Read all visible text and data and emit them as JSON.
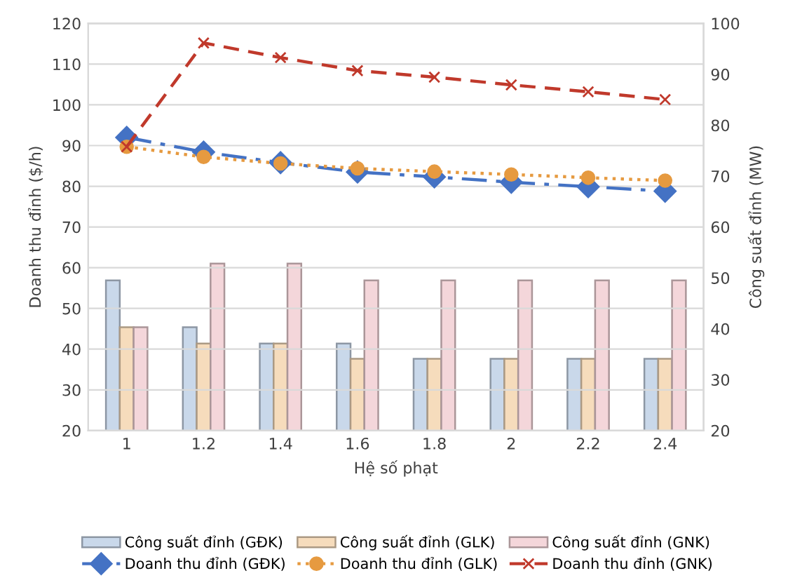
{
  "chart_data": {
    "type": "bar",
    "xlabel": "Hệ số phạt",
    "ylabel": "Doanh thu đỉnh ($/h)",
    "y2label": "Công suất đỉnh (MW)",
    "categories": [
      "1",
      "1.2",
      "1.4",
      "1.6",
      "1.8",
      "2",
      "2.2",
      "2.4"
    ],
    "ylim": [
      20,
      120
    ],
    "yticks": [
      20,
      30,
      40,
      50,
      60,
      70,
      80,
      90,
      100,
      110,
      120
    ],
    "y2lim": [
      20,
      100
    ],
    "y2ticks": [
      20,
      30,
      40,
      50,
      60,
      70,
      80,
      90,
      100
    ],
    "grid": true,
    "legend": "bottom",
    "series": [
      {
        "name": "Công suất đỉnh (GĐK)",
        "axis": "y2",
        "color": "#c9d8ea",
        "values": [
          49.5,
          40.3,
          37.1,
          37.1,
          34.1,
          34.1,
          34.1,
          34.1
        ]
      },
      {
        "name": "Công suất đỉnh (GLK)",
        "axis": "y2",
        "color": "#f6dcbc",
        "values": [
          40.3,
          37.1,
          37.1,
          34.1,
          34.1,
          34.1,
          34.1,
          34.1
        ]
      },
      {
        "name": "Công suất đỉnh (GNK)",
        "axis": "y2",
        "color": "#f4d6da",
        "values": [
          40.3,
          52.8,
          52.8,
          49.5,
          49.5,
          49.5,
          49.5,
          49.5
        ]
      },
      {
        "name": "Doanh thu đỉnh (GĐK)",
        "type": "line",
        "color": "#4472c4",
        "marker": "diamond",
        "line_style": "dashdot",
        "values": [
          92.0,
          88.4,
          85.8,
          83.5,
          82.3,
          81.0,
          79.9,
          78.8
        ]
      },
      {
        "name": "Doanh thu đỉnh (GLK)",
        "type": "line",
        "color": "#e69a40",
        "marker": "circle",
        "line_style": "dotted",
        "values": [
          89.7,
          87.2,
          85.6,
          84.4,
          83.6,
          82.9,
          82.1,
          81.4
        ]
      },
      {
        "name": "Doanh thu đỉnh (GNK)",
        "type": "line",
        "color": "#c0392b",
        "marker": "cross",
        "line_style": "dashed",
        "values": [
          89.7,
          115.2,
          111.6,
          108.4,
          106.8,
          104.9,
          103.2,
          101.3
        ]
      }
    ]
  }
}
